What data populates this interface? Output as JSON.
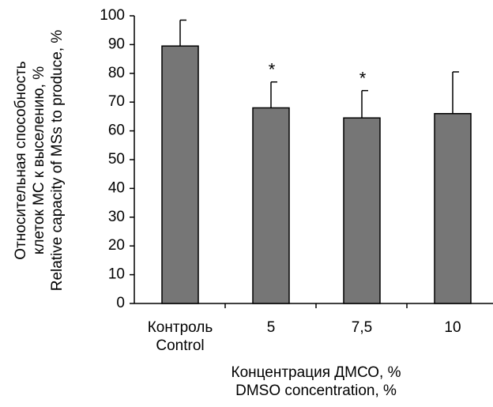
{
  "chart_data": {
    "type": "bar",
    "y_label": "Относительная способность\nклеток МС к выселению, %\nRelative capacity of MSs to produce, %",
    "x_label": "Концентрация ДМСО, %\nDMSO concentration, %",
    "categories": [
      "Контроль\nControl",
      "5",
      "7,5",
      "10"
    ],
    "series": [
      {
        "color": "#767676",
        "values": [
          89.5,
          68,
          64.5,
          66
        ],
        "errors": [
          9,
          9,
          9.5,
          14.5
        ]
      }
    ],
    "value_annotations": [
      null,
      "*",
      "*",
      null
    ],
    "ylim": [
      0,
      100
    ],
    "yticks": [
      0,
      10,
      20,
      30,
      40,
      50,
      60,
      70,
      80,
      90,
      100
    ]
  }
}
